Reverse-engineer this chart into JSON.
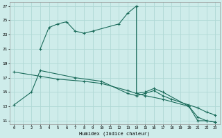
{
  "xlabel": "Humidex (Indice chaleur)",
  "xlim": [
    -0.5,
    23.5
  ],
  "ylim": [
    10.5,
    27.5
  ],
  "yticks": [
    11,
    13,
    15,
    17,
    19,
    21,
    23,
    25,
    27
  ],
  "xticks": [
    0,
    1,
    2,
    3,
    4,
    5,
    6,
    7,
    8,
    9,
    10,
    11,
    12,
    13,
    14,
    15,
    16,
    17,
    18,
    19,
    20,
    21,
    22,
    23
  ],
  "bg_color": "#ceecea",
  "grid_color": "#b0d8d5",
  "line_color": "#1a6b5a",
  "line1_x": [
    3,
    4,
    5,
    6,
    7,
    8,
    9,
    12,
    13,
    14,
    14,
    15,
    16,
    17,
    20,
    21,
    22,
    23
  ],
  "line1_y": [
    21,
    24,
    24.5,
    24.8,
    23.5,
    23.2,
    23.5,
    24.5,
    26,
    27,
    14.8,
    15,
    15.5,
    15,
    13,
    11,
    11,
    10.8
  ],
  "line2_x": [
    0,
    2,
    3,
    7,
    10,
    13,
    14,
    15,
    16,
    17,
    18,
    20,
    21,
    22,
    23
  ],
  "line2_y": [
    13.2,
    15,
    18,
    17,
    16.5,
    14.8,
    14.5,
    14.8,
    15.2,
    14.5,
    14.0,
    13.2,
    12.8,
    12.2,
    11.8
  ],
  "line3_x": [
    0,
    3,
    5,
    8,
    10,
    13,
    14,
    15,
    17,
    20,
    21,
    22,
    23
  ],
  "line3_y": [
    17.8,
    17.2,
    16.8,
    16.5,
    16.2,
    15.2,
    14.8,
    14.5,
    14.0,
    13.0,
    11.5,
    11.0,
    10.8
  ]
}
